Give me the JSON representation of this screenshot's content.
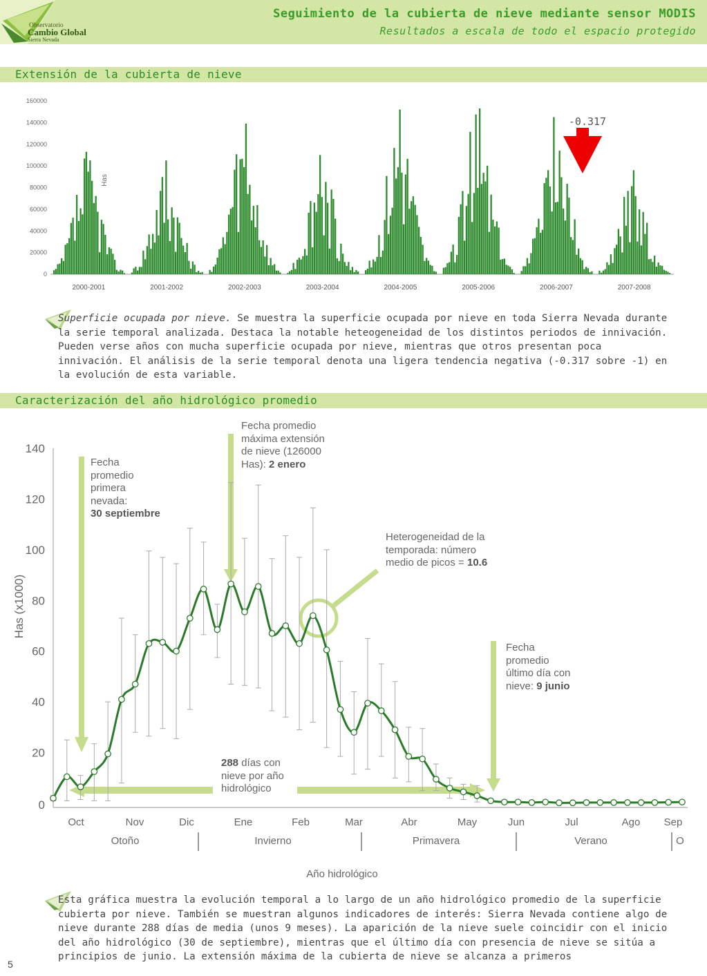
{
  "header": {
    "logo_line1": "Observatorio",
    "logo_line2": "Cambio Global",
    "logo_line3": "Sierra Nevada",
    "title": "Seguimiento de la cubierta de nieve mediante sensor MODIS",
    "subtitle": "Resultados a escala de todo el espacio protegido"
  },
  "section1": {
    "title": "Extensión de la cubierta de nieve",
    "paragraph_lead": "Superficie ocupada por nieve.",
    "paragraph_body": " Se muestra la superficie ocupada por nieve en toda Sierra Nevada durante la serie temporal analizada. Destaca la notable heteogeneidad de los distintos periodos de innivación. Pueden verse años con mucha superficie ocupada por nieve, mientras que otros presentan poca innivación. El análisis de la serie temporal denota  una ligera tendencia negativa (-0.317 sobre -1) en la evolución de esta variable."
  },
  "section2": {
    "title": "Caracterización del año hidrológico promedio",
    "paragraph": "Esta gráfica muestra la evolución temporal a lo largo de un año hidrológico promedio de la superficie cubierta por nieve. También se muestran algunos indicadores de interés:  Sierra Nevada contiene algo de nieve durante 288 días de media (unos 9 meses). La aparición de la nieve suele coincidir con el inicio del año hidrológico (30 de septiembre), mientras que el último día con presencia de nieve se sitúa a principios de junio. La extensión máxima de la cubierta de nieve se alcanza a primeros"
  },
  "annotations": {
    "first_snow": [
      "Fecha",
      "promedio",
      "primera",
      "nevada:"
    ],
    "first_snow_bold": "30 septiembre",
    "max_extent": [
      "Fecha promedio",
      "máxima extensión",
      "de nieve (126000"
    ],
    "max_extent_pre": "Has): ",
    "max_extent_bold": "2 enero",
    "heterogeneity": [
      "Heterogeneidad de la",
      "temporada: número"
    ],
    "heterogeneity_pre": "medio de picos = ",
    "heterogeneity_bold": "10.6",
    "last_day": [
      "Fecha",
      "promedio",
      "último día con"
    ],
    "last_day_pre": "nieve: ",
    "last_day_bold": "9 junio",
    "days_bold": "288",
    "days_rest1": " días con",
    "days_rest2": "nieve por año",
    "days_rest3": "hidrológico"
  },
  "page_number": "5",
  "colors": {
    "bar": "#2e8b2e",
    "line": "#2a7a2a",
    "accent_green": "#c5dc8c",
    "trend_arrow": "#ee0000"
  },
  "chart_data": [
    {
      "type": "bar",
      "title": "",
      "xlabel": "",
      "ylabel": "Has",
      "ylim": [
        0,
        160000
      ],
      "yticks": [
        0,
        20000,
        40000,
        60000,
        80000,
        100000,
        120000,
        140000,
        160000
      ],
      "categories": [
        "2000-2001",
        "2001-2002",
        "2002-2003",
        "2003-2004",
        "2004-2005",
        "2005-2006",
        "2006-2007",
        "2007-2008"
      ],
      "season_peaks": [
        113000,
        105000,
        139000,
        110000,
        152000,
        153000,
        145000,
        96000
      ],
      "trend_label": "-0.317",
      "grid": false
    },
    {
      "type": "line",
      "title": "",
      "xlabel": "Año hidrológico",
      "ylabel": "Has (x1000)",
      "ylim": [
        0,
        140
      ],
      "yticks": [
        0,
        20,
        40,
        60,
        80,
        100,
        120,
        140
      ],
      "month_labels": [
        "Oct",
        "Nov",
        "Dic",
        "Ene",
        "Feb",
        "Mar",
        "Abr",
        "May",
        "Jun",
        "Jul",
        "Ago",
        "Sep"
      ],
      "seasons": [
        "Otoño",
        "Invierno",
        "Primavera",
        "Verano",
        "O"
      ],
      "series": [
        {
          "values": [
            2,
            10.5,
            6.5,
            12.5,
            19.5,
            41,
            47,
            63,
            63.5,
            60,
            73,
            84.5,
            68.5,
            86.5,
            75.5,
            85.5,
            67,
            70,
            63,
            74,
            60.5,
            37,
            28,
            39.5,
            36.5,
            29,
            18.5,
            17.5,
            9.5,
            6,
            4.5,
            3,
            1,
            0.5,
            0.5,
            0.3,
            0.5,
            0.2,
            0.2,
            0.3,
            0.3,
            0.3,
            0.3,
            0.3,
            0.3,
            0.4,
            0.5
          ],
          "error_upper": [
            3,
            25,
            11,
            23.5,
            40,
            73,
            66.5,
            99.5,
            97,
            94.5,
            108.5,
            103,
            78.5,
            126.5,
            104.5,
            125.5,
            96.5,
            105.5,
            97,
            116.5,
            100,
            56,
            44,
            65,
            55,
            48,
            30,
            29.5,
            15.5,
            10,
            7.5,
            7
          ],
          "error_lower": [
            1,
            1,
            1.5,
            1,
            1,
            8,
            28,
            26.5,
            29.5,
            25.5,
            37,
            66.5,
            57.5,
            47,
            46.5,
            45.5,
            36.5,
            34,
            29,
            32,
            22,
            18.5,
            11.5,
            13.5,
            18.5,
            10,
            8.5,
            5,
            5,
            2,
            1.5,
            0.5
          ]
        }
      ],
      "grid": false
    }
  ]
}
